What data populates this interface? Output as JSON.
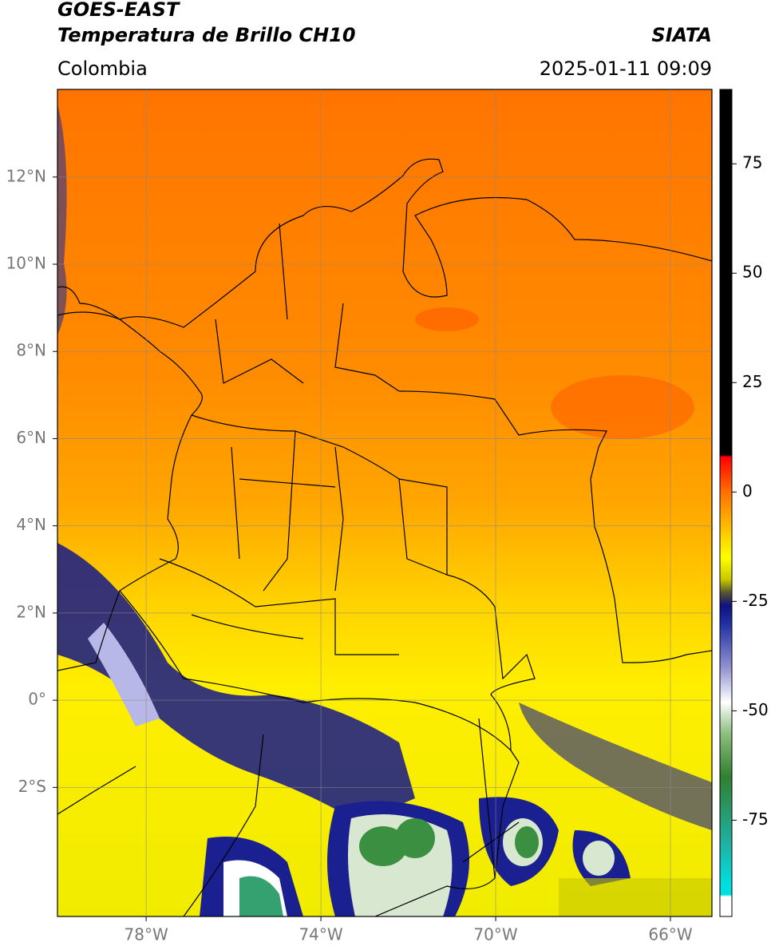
{
  "header": {
    "title": "GOES-EAST",
    "subtitle": "Temperatura de Brillo CH10",
    "region": "Colombia",
    "source": "SIATA",
    "datetime": "2025-01-11 09:09"
  },
  "map": {
    "xlim": [
      -80.03,
      -65.05
    ],
    "ylim": [
      -4.96,
      14.01
    ],
    "grid": true,
    "xticks": [
      {
        "value": -78,
        "label": "78°W"
      },
      {
        "value": -74,
        "label": "74°W"
      },
      {
        "value": -70,
        "label": "70°W"
      },
      {
        "value": -66,
        "label": "66°W"
      }
    ],
    "yticks": [
      {
        "value": 12,
        "label": "12°N"
      },
      {
        "value": 10,
        "label": "10°N"
      },
      {
        "value": 8,
        "label": "8°N"
      },
      {
        "value": 6,
        "label": "6°N"
      },
      {
        "value": 4,
        "label": "4°N"
      },
      {
        "value": 2,
        "label": "2°N"
      },
      {
        "value": 0,
        "label": "0°"
      },
      {
        "value": -2,
        "label": "2°S"
      }
    ]
  },
  "colorbar": {
    "lim": [
      -97,
      92
    ],
    "ticks": [
      75,
      50,
      25,
      0,
      -25,
      -50,
      -75
    ],
    "stops": [
      {
        "value": 92,
        "color": "#000000"
      },
      {
        "value": 8.5,
        "color": "#000000"
      },
      {
        "value": 8,
        "color": "#ff0000"
      },
      {
        "value": 0,
        "color": "#ff7000"
      },
      {
        "value": -10,
        "color": "#ffd000"
      },
      {
        "value": -15,
        "color": "#ffff00"
      },
      {
        "value": -20,
        "color": "#c8c800"
      },
      {
        "value": -23,
        "color": "#555530"
      },
      {
        "value": -26,
        "color": "#101080"
      },
      {
        "value": -30,
        "color": "#2030a0"
      },
      {
        "value": -40,
        "color": "#9090d0"
      },
      {
        "value": -48,
        "color": "#ffffff"
      },
      {
        "value": -55,
        "color": "#90c080"
      },
      {
        "value": -65,
        "color": "#308030"
      },
      {
        "value": -80,
        "color": "#20b0a0"
      },
      {
        "value": -90,
        "color": "#00e0e0"
      },
      {
        "value": -92,
        "color": "#00e0e0"
      },
      {
        "value": -92.5,
        "color": "#ffffff"
      },
      {
        "value": -97,
        "color": "#ffffff"
      }
    ]
  }
}
